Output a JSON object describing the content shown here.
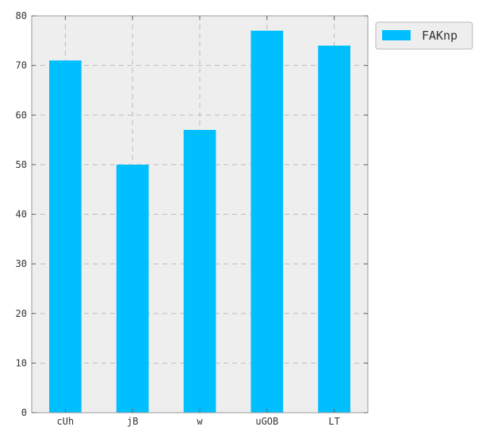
{
  "chart_data": {
    "type": "bar",
    "title": "",
    "xlabel": "",
    "ylabel": "",
    "categories": [
      "cUh",
      "jB",
      "w",
      "uGOB",
      "LT"
    ],
    "series": [
      {
        "name": "FAKnp",
        "values": [
          71,
          50,
          57,
          77,
          74
        ],
        "color": "#00bfff"
      }
    ],
    "ylim": [
      0,
      80
    ],
    "yticks": [
      0,
      10,
      20,
      30,
      40,
      50,
      60,
      70,
      80
    ],
    "grid": true,
    "legend_position": "outside-top-right",
    "plot_background": "#eeeeee",
    "grid_color": "#bbbbbb"
  }
}
